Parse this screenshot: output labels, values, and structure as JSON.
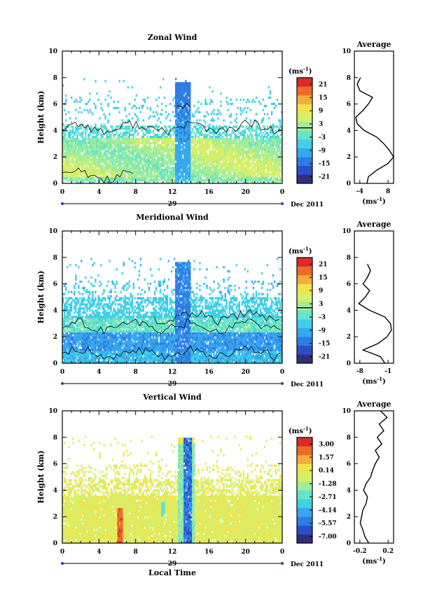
{
  "colormap": [
    "#30307a",
    "#2b4fc8",
    "#2f7be6",
    "#36a7ee",
    "#3fcfe6",
    "#66e3c8",
    "#a0ec9a",
    "#d4ef6a",
    "#f2e34a",
    "#f4ad3a",
    "#ee6a2c",
    "#dc2a28"
  ],
  "chart_data": [
    {
      "type": "heatmap",
      "title": "Zonal Wind",
      "ylabel": "Height (km)",
      "xlabel": "",
      "x_ticks": [
        "0",
        "4",
        "8",
        "12",
        "16",
        "20",
        "0"
      ],
      "y_ticks": [
        "0",
        "2",
        "4",
        "6",
        "8",
        "10"
      ],
      "xlim": [
        0,
        24
      ],
      "ylim": [
        0,
        10
      ],
      "date_day": "29",
      "date_label": "Dec 2011",
      "colorbar": {
        "unit": "(ms",
        "unit_sup": "-1",
        "ticks": [
          "21",
          "15",
          "9",
          "3",
          "-3",
          "-9",
          "-15",
          "-21"
        ],
        "range": [
          -24,
          24
        ],
        "zero_line": 3
      },
      "profile": {
        "title": "Average",
        "x_ticks": [
          "-4",
          "8"
        ],
        "xlim": [
          -6,
          8
        ],
        "unit": "(ms",
        "unit_sup": "-1",
        "heights": [
          0,
          0.5,
          1.0,
          1.5,
          2.0,
          2.5,
          3.0,
          3.5,
          4.0,
          4.5,
          5.0,
          5.5,
          6.0,
          6.5,
          7.0,
          7.5,
          8.0
        ],
        "values": [
          -1.5,
          -1.0,
          2.0,
          6.0,
          8.0,
          6.5,
          4.5,
          2.0,
          -2.5,
          -5.0,
          -5.5,
          -3.0,
          -1.0,
          0.5,
          -4.0,
          -5.0,
          -3.8
        ]
      }
    },
    {
      "type": "heatmap",
      "title": "Meridional Wind",
      "ylabel": "Height (km)",
      "xlabel": "",
      "x_ticks": [
        "0",
        "4",
        "8",
        "12",
        "16",
        "20",
        "0"
      ],
      "y_ticks": [
        "0",
        "2",
        "4",
        "6",
        "8",
        "10"
      ],
      "xlim": [
        0,
        24
      ],
      "ylim": [
        0,
        10
      ],
      "date_day": "29",
      "date_label": "Dec 2011",
      "colorbar": {
        "unit": "(ms",
        "unit_sup": "-1",
        "ticks": [
          "21",
          "15",
          "9",
          "3",
          "-3",
          "-9",
          "-15",
          "-21"
        ],
        "range": [
          -24,
          24
        ],
        "zero_line": 3
      },
      "profile": {
        "title": "Average",
        "x_ticks": [
          "-8",
          "-1"
        ],
        "xlim": [
          -9.5,
          -0.5
        ],
        "unit": "(ms",
        "unit_sup": "-1",
        "heights": [
          0,
          0.5,
          1.0,
          1.5,
          2.0,
          2.5,
          3.0,
          3.5,
          4.0,
          4.5,
          5.0,
          5.5,
          6.0,
          6.5,
          7.0,
          7.5
        ],
        "values": [
          -2.5,
          -3.5,
          -7.5,
          -4.0,
          -2.0,
          -1.0,
          -1.2,
          -2.5,
          -6.0,
          -8.5,
          -7.0,
          -6.0,
          -7.5,
          -6.5,
          -5.8,
          -6.5
        ]
      }
    },
    {
      "type": "heatmap",
      "title": "Vertical Wind",
      "ylabel": "Height (km)",
      "xlabel": "Local Time",
      "x_ticks": [
        "0",
        "4",
        "8",
        "12",
        "16",
        "20",
        "0"
      ],
      "y_ticks": [
        "0",
        "2",
        "4",
        "6",
        "8",
        "10"
      ],
      "xlim": [
        0,
        24
      ],
      "ylim": [
        0,
        10
      ],
      "date_day": "29",
      "date_label": "Dec 2011",
      "colorbar": {
        "unit": "(ms",
        "unit_sup": "-1",
        "ticks": [
          "3.00",
          "1.57",
          "0.14",
          "-1.28",
          "-2.71",
          "-4.14",
          "-5.57",
          "-7.00"
        ],
        "range": [
          -7.7,
          3.7
        ],
        "zero_line": null
      },
      "profile": {
        "title": "Average",
        "x_ticks": [
          "-0.2",
          "0.2"
        ],
        "xlim": [
          -0.3,
          0.3
        ],
        "unit": "(ms",
        "unit_sup": "-1",
        "heights": [
          0,
          0.5,
          1.0,
          1.5,
          2.0,
          2.5,
          3.0,
          3.5,
          4.0,
          4.5,
          5.0,
          5.5,
          6.0,
          6.5,
          7.0,
          7.5,
          8.0,
          8.5,
          9.0,
          9.5,
          10.0
        ],
        "values": [
          -0.08,
          -0.14,
          -0.17,
          -0.21,
          -0.19,
          -0.17,
          -0.12,
          -0.1,
          -0.16,
          -0.12,
          -0.05,
          -0.02,
          0.02,
          0.08,
          0.02,
          0.12,
          0.05,
          0.15,
          0.08,
          0.2,
          0.1
        ]
      }
    }
  ]
}
